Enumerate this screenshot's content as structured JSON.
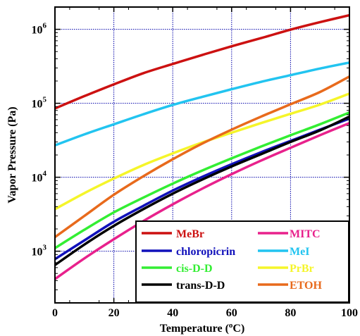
{
  "chart_data": {
    "type": "line",
    "title": "",
    "xlabel": "Temperature (°C)",
    "xlabel_parts": {
      "prefix": "Temperature (",
      "sup": "o",
      "suffix": "C)"
    },
    "ylabel": "Vapor Pressure (Pa)",
    "xlim": [
      0,
      100
    ],
    "ylim": [
      200,
      2000000
    ],
    "yscale": "log",
    "grid": true,
    "grid_color": "#0000aa",
    "legend_position": "bottom-right",
    "x_ticks": [
      {
        "value": 0,
        "label": "0"
      },
      {
        "value": 20,
        "label": "20"
      },
      {
        "value": 40,
        "label": "40"
      },
      {
        "value": 60,
        "label": "60"
      },
      {
        "value": 80,
        "label": "80"
      },
      {
        "value": 100,
        "label": "100"
      }
    ],
    "y_ticks": [
      {
        "value": 1000,
        "base": "10",
        "exp": "3"
      },
      {
        "value": 10000,
        "base": "10",
        "exp": "4"
      },
      {
        "value": 100000,
        "base": "10",
        "exp": "5"
      },
      {
        "value": 1000000,
        "base": "10",
        "exp": "6"
      }
    ],
    "x": [
      0,
      10,
      20,
      30,
      40,
      50,
      60,
      70,
      80,
      90,
      100
    ],
    "series": [
      {
        "name": "MeBr",
        "color": "#cc1111",
        "values": [
          85000,
          125000,
          180000,
          255000,
          340000,
          450000,
          590000,
          760000,
          990000,
          1250000,
          1550000
        ]
      },
      {
        "name": "MITC",
        "color": "#e8218c",
        "values": [
          420,
          800,
          1450,
          2550,
          4300,
          7000,
          11000,
          16800,
          25000,
          37000,
          54000
        ]
      },
      {
        "name": "chloropicrin",
        "color": "#1111bb",
        "values": [
          780,
          1400,
          2500,
          4100,
          6600,
          10100,
          15000,
          21800,
          31000,
          44000,
          62000
        ]
      },
      {
        "name": "MeI",
        "color": "#22c4f0",
        "values": [
          27000,
          38000,
          52000,
          71000,
          95000,
          122000,
          155000,
          195000,
          240000,
          295000,
          355000
        ]
      },
      {
        "name": "cis-D-D",
        "color": "#33ee33",
        "values": [
          1100,
          1950,
          3350,
          5300,
          8200,
          12300,
          18000,
          26000,
          37000,
          52000,
          75000
        ]
      },
      {
        "name": "PrBr",
        "color": "#f5f52a",
        "values": [
          3700,
          6100,
          9600,
          14600,
          21000,
          29500,
          40000,
          54000,
          72000,
          96000,
          135000
        ]
      },
      {
        "name": "trans-D-D",
        "color": "#000000",
        "values": [
          650,
          1230,
          2200,
          3700,
          6000,
          9300,
          14000,
          20500,
          30000,
          43000,
          66000
        ]
      },
      {
        "name": "ETOH",
        "color": "#e86a1c",
        "values": [
          1550,
          3000,
          5800,
          10300,
          17500,
          28500,
          44000,
          66000,
          97000,
          142000,
          230000
        ]
      }
    ]
  }
}
